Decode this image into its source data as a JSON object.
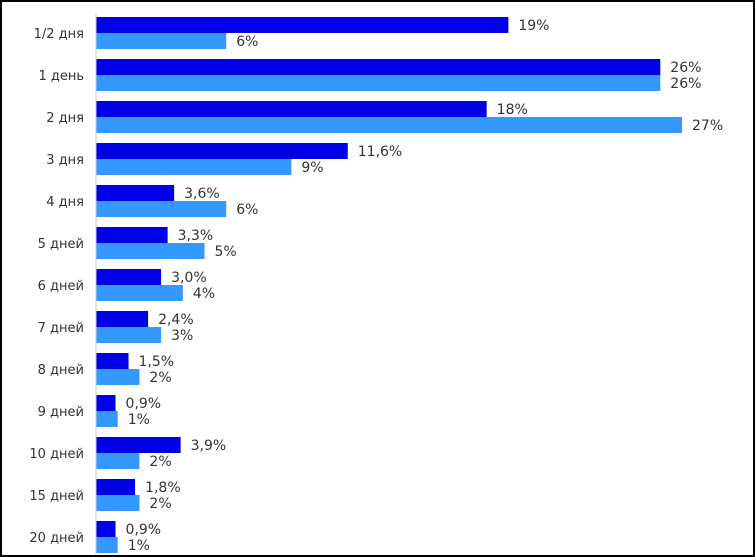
{
  "chart_data": {
    "type": "bar",
    "orientation": "horizontal",
    "categories": [
      "1/2 дня",
      "1 день",
      "2 дня",
      "3 дня",
      "4 дня",
      "5 дней",
      "6 дней",
      "7 дней",
      "8 дней",
      "9 дней",
      "10 дней",
      "15 дней",
      "20 дней"
    ],
    "series": [
      {
        "color": "#0000e6",
        "values": [
          19,
          26,
          18,
          11.6,
          3.6,
          3.3,
          3.0,
          2.4,
          1.5,
          0.9,
          3.9,
          1.8,
          0.9
        ],
        "labels": [
          "19%",
          "26%",
          "18%",
          "11,6%",
          "3,6%",
          "3,3%",
          "3,0%",
          "2,4%",
          "1,5%",
          "0,9%",
          "3,9%",
          "1,8%",
          "0,9%"
        ]
      },
      {
        "color": "#3399ff",
        "values": [
          6,
          26,
          27,
          9,
          6,
          5,
          4,
          3,
          2,
          1,
          2,
          2,
          1
        ],
        "labels": [
          "6%",
          "26%",
          "27%",
          "9%",
          "6%",
          "5%",
          "4%",
          "3%",
          "2%",
          "1%",
          "2%",
          "2%",
          "1%"
        ]
      }
    ],
    "xlim": [
      0,
      27
    ],
    "title": "",
    "xlabel": "",
    "ylabel": "",
    "legend": "none",
    "grid": false
  }
}
